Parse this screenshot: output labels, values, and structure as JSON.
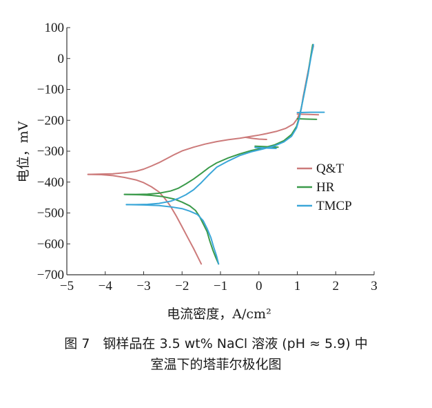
{
  "chart_data": {
    "type": "line",
    "xlabel": "电流密度，A/cm²",
    "ylabel": "电位，mV",
    "xlim": [
      -5,
      3
    ],
    "ylim": [
      -700,
      100
    ],
    "x_ticks": [
      -5,
      -4,
      -3,
      -2,
      -1,
      0,
      1,
      2,
      3
    ],
    "y_ticks": [
      100,
      0,
      -100,
      -200,
      -300,
      -400,
      -500,
      -600,
      -700
    ],
    "y_tick_labels": [
      "100",
      "0",
      "−100",
      "−200",
      "−300",
      "−400",
      "−500",
      "−600",
      "−700"
    ],
    "x_tick_labels": [
      "−5",
      "−4",
      "−3",
      "−2",
      "−1",
      "0",
      "1",
      "2",
      "3"
    ],
    "grid": false,
    "legend_position": "right",
    "series": [
      {
        "name": "Q&T",
        "color": "#cc7a7a",
        "segments": [
          [
            [
              -4.45,
              -375
            ],
            [
              -4.1,
              -374
            ],
            [
              -3.8,
              -373
            ],
            [
              -3.5,
              -370
            ],
            [
              -3.2,
              -365
            ],
            [
              -3.0,
              -358
            ],
            [
              -2.8,
              -348
            ],
            [
              -2.6,
              -337
            ],
            [
              -2.4,
              -324
            ],
            [
              -2.2,
              -311
            ],
            [
              -2.0,
              -299
            ],
            [
              -1.7,
              -287
            ],
            [
              -1.4,
              -277
            ],
            [
              -1.1,
              -269
            ],
            [
              -0.8,
              -263
            ],
            [
              -0.5,
              -258
            ],
            [
              -0.35,
              -255
            ],
            [
              -0.2,
              -252
            ],
            [
              0.0,
              -248
            ],
            [
              0.2,
              -243
            ],
            [
              0.45,
              -236
            ],
            [
              0.7,
              -226
            ],
            [
              0.9,
              -212
            ],
            [
              1.0,
              -195
            ],
            [
              1.1,
              -165
            ],
            [
              1.15,
              -125
            ],
            [
              1.22,
              -80
            ],
            [
              1.3,
              -30
            ],
            [
              1.36,
              10
            ],
            [
              1.42,
              40
            ]
          ],
          [
            [
              -4.45,
              -375
            ],
            [
              -4.1,
              -376
            ],
            [
              -3.8,
              -379
            ],
            [
              -3.5,
              -385
            ],
            [
              -3.2,
              -393
            ],
            [
              -3.0,
              -402
            ],
            [
              -2.8,
              -415
            ],
            [
              -2.6,
              -432
            ],
            [
              -2.45,
              -453
            ],
            [
              -2.3,
              -478
            ],
            [
              -2.15,
              -510
            ],
            [
              -2.0,
              -545
            ],
            [
              -1.85,
              -580
            ],
            [
              -1.7,
              -615
            ],
            [
              -1.6,
              -640
            ],
            [
              -1.5,
              -665
            ]
          ],
          [
            [
              -0.35,
              -255
            ],
            [
              -0.2,
              -258
            ],
            [
              0.0,
              -261
            ],
            [
              0.2,
              -262
            ]
          ],
          [
            [
              1.0,
              -180
            ],
            [
              1.3,
              -181
            ],
            [
              1.55,
              -182
            ]
          ]
        ]
      },
      {
        "name": "HR",
        "color": "#3a9a4a",
        "segments": [
          [
            [
              -3.5,
              -440
            ],
            [
              -3.2,
              -440
            ],
            [
              -2.9,
              -439
            ],
            [
              -2.6,
              -436
            ],
            [
              -2.3,
              -429
            ],
            [
              -2.1,
              -420
            ],
            [
              -1.9,
              -406
            ],
            [
              -1.7,
              -390
            ],
            [
              -1.5,
              -372
            ],
            [
              -1.3,
              -353
            ],
            [
              -1.1,
              -338
            ],
            [
              -0.8,
              -322
            ],
            [
              -0.5,
              -309
            ],
            [
              -0.2,
              -298
            ],
            [
              0.1,
              -290
            ],
            [
              0.4,
              -280
            ],
            [
              0.65,
              -266
            ],
            [
              0.85,
              -246
            ],
            [
              0.98,
              -220
            ],
            [
              1.05,
              -190
            ],
            [
              1.12,
              -150
            ],
            [
              1.2,
              -100
            ],
            [
              1.28,
              -50
            ],
            [
              1.34,
              0
            ],
            [
              1.4,
              45
            ]
          ],
          [
            [
              -3.5,
              -440
            ],
            [
              -3.1,
              -441
            ],
            [
              -2.8,
              -443
            ],
            [
              -2.5,
              -447
            ],
            [
              -2.2,
              -455
            ],
            [
              -2.0,
              -465
            ],
            [
              -1.8,
              -477
            ],
            [
              -1.65,
              -492
            ],
            [
              -1.55,
              -510
            ],
            [
              -1.45,
              -535
            ],
            [
              -1.35,
              -560
            ],
            [
              -1.28,
              -590
            ],
            [
              -1.2,
              -620
            ],
            [
              -1.12,
              -645
            ],
            [
              -1.05,
              -665
            ]
          ],
          [
            [
              -0.1,
              -284
            ],
            [
              0.1,
              -285
            ],
            [
              0.3,
              -286
            ],
            [
              0.5,
              -287
            ]
          ],
          [
            [
              1.0,
              -195
            ],
            [
              1.25,
              -196
            ],
            [
              1.5,
              -197
            ]
          ]
        ]
      },
      {
        "name": "TMCP",
        "color": "#3aa6d8",
        "segments": [
          [
            [
              -3.45,
              -473
            ],
            [
              -3.2,
              -473
            ],
            [
              -2.9,
              -472
            ],
            [
              -2.6,
              -469
            ],
            [
              -2.3,
              -462
            ],
            [
              -2.1,
              -453
            ],
            [
              -1.9,
              -441
            ],
            [
              -1.7,
              -425
            ],
            [
              -1.5,
              -402
            ],
            [
              -1.3,
              -376
            ],
            [
              -1.1,
              -352
            ],
            [
              -0.8,
              -332
            ],
            [
              -0.5,
              -314
            ],
            [
              -0.2,
              -302
            ],
            [
              0.1,
              -293
            ],
            [
              0.4,
              -283
            ],
            [
              0.65,
              -270
            ],
            [
              0.85,
              -252
            ],
            [
              0.98,
              -225
            ],
            [
              1.05,
              -195
            ],
            [
              1.12,
              -150
            ],
            [
              1.2,
              -100
            ],
            [
              1.28,
              -50
            ],
            [
              1.35,
              0
            ],
            [
              1.42,
              45
            ]
          ],
          [
            [
              -3.45,
              -473
            ],
            [
              -3.0,
              -474
            ],
            [
              -2.6,
              -476
            ],
            [
              -2.3,
              -480
            ],
            [
              -2.0,
              -486
            ],
            [
              -1.8,
              -494
            ],
            [
              -1.6,
              -505
            ],
            [
              -1.45,
              -525
            ],
            [
              -1.35,
              -550
            ],
            [
              -1.25,
              -580
            ],
            [
              -1.18,
              -610
            ],
            [
              -1.1,
              -640
            ],
            [
              -1.05,
              -665
            ]
          ],
          [
            [
              -0.1,
              -288
            ],
            [
              0.2,
              -290
            ],
            [
              0.45,
              -291
            ]
          ],
          [
            [
              1.0,
              -175
            ],
            [
              1.35,
              -174
            ],
            [
              1.7,
              -174
            ]
          ]
        ]
      }
    ]
  },
  "caption": {
    "line1": "图 7　钢样品在 3.5 wt% NaCl 溶液 (pH ≈ 5.9) 中",
    "line2": "室温下的塔菲尔极化图"
  }
}
